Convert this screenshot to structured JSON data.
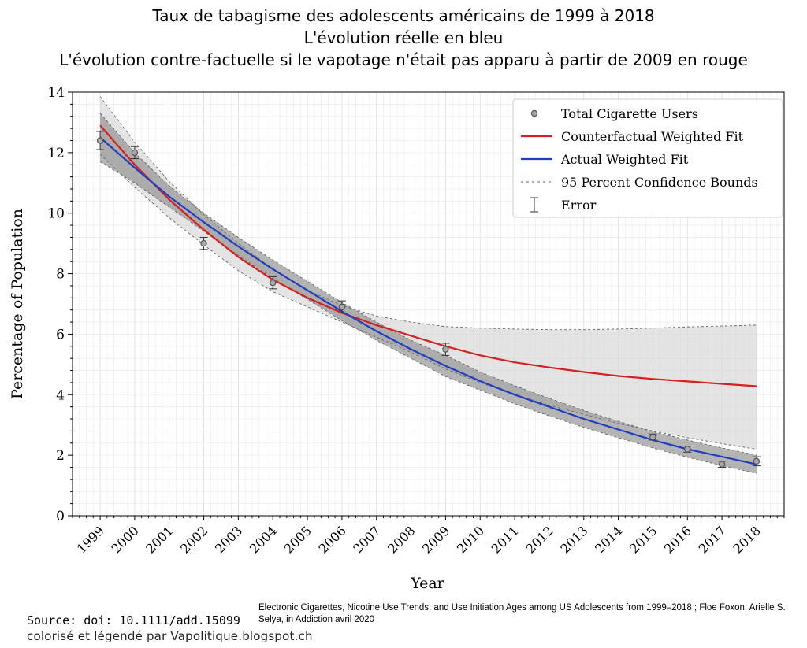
{
  "titles": {
    "line1": "Taux de tabagisme des adolescents américains de 1999 à 2018",
    "line2": "L'évolution réelle en bleu",
    "line3": "L'évolution contre-factuelle si le vapotage n'était pas apparu à partir de 2009 en rouge"
  },
  "source": {
    "main": "Source: doi: 10.1111/add.15099",
    "citation": "Electronic Cigarettes, Nicotine Use Trends, and Use Initiation Ages among US Adolescents from 1999–2018 ; Floe Foxon, Arielle S. Selya, in Addiction avril 2020",
    "credit": "colorisé et légendé par Vapolitique.blogspot.ch"
  },
  "chart_data": {
    "type": "line",
    "xlabel": "Year",
    "ylabel": "Percentage of Population",
    "xlim": [
      1998.2,
      2018.8
    ],
    "ylim": [
      0,
      14
    ],
    "x_ticks": [
      1999,
      2000,
      2001,
      2002,
      2003,
      2004,
      2005,
      2006,
      2007,
      2008,
      2009,
      2010,
      2011,
      2012,
      2013,
      2014,
      2015,
      2016,
      2017,
      2018
    ],
    "y_ticks": [
      0,
      2,
      4,
      6,
      8,
      10,
      12,
      14
    ],
    "grid": "minor",
    "legend_position": "top-right",
    "legend": [
      {
        "label": "Total Cigarette Users",
        "kind": "marker"
      },
      {
        "label": "Counterfactual Weighted Fit",
        "kind": "line",
        "color": "#d62020"
      },
      {
        "label": "Actual Weighted Fit",
        "kind": "line",
        "color": "#1f3fbf"
      },
      {
        "label": "95 Percent Confidence Bounds",
        "kind": "dashed"
      },
      {
        "label": "Error",
        "kind": "errorbar"
      }
    ],
    "points": [
      {
        "x": 1999,
        "y": 12.4,
        "err": 0.3
      },
      {
        "x": 2000,
        "y": 12.0,
        "err": 0.2
      },
      {
        "x": 2002,
        "y": 9.0,
        "err": 0.2
      },
      {
        "x": 2004,
        "y": 7.7,
        "err": 0.2
      },
      {
        "x": 2006,
        "y": 6.9,
        "err": 0.2
      },
      {
        "x": 2009,
        "y": 5.5,
        "err": 0.2
      },
      {
        "x": 2015,
        "y": 2.6,
        "err": 0.1
      },
      {
        "x": 2016,
        "y": 2.2,
        "err": 0.1
      },
      {
        "x": 2017,
        "y": 1.7,
        "err": 0.1
      },
      {
        "x": 2018,
        "y": 1.8,
        "err": 0.15
      }
    ],
    "actual_fit": {
      "name": "Actual Weighted Fit",
      "color": "#1f3fbf",
      "x": [
        1999,
        2000,
        2001,
        2002,
        2003,
        2004,
        2005,
        2006,
        2007,
        2008,
        2009,
        2010,
        2011,
        2012,
        2013,
        2014,
        2015,
        2016,
        2017,
        2018
      ],
      "y": [
        12.5,
        11.5,
        10.55,
        9.7,
        8.9,
        8.15,
        7.45,
        6.75,
        6.1,
        5.5,
        4.95,
        4.45,
        4.0,
        3.6,
        3.2,
        2.85,
        2.5,
        2.2,
        1.95,
        1.7
      ],
      "upper": [
        13.3,
        12.0,
        10.9,
        10.0,
        9.2,
        8.45,
        7.75,
        7.05,
        6.4,
        5.8,
        5.3,
        4.75,
        4.3,
        3.88,
        3.48,
        3.12,
        2.78,
        2.5,
        2.24,
        2.0
      ],
      "lower": [
        11.7,
        11.0,
        10.2,
        9.4,
        8.6,
        7.85,
        7.15,
        6.45,
        5.8,
        5.2,
        4.6,
        4.15,
        3.7,
        3.3,
        2.92,
        2.58,
        2.24,
        1.93,
        1.66,
        1.4
      ]
    },
    "counterfactual_fit": {
      "name": "Counterfactual Weighted Fit",
      "color": "#d62020",
      "x": [
        1999,
        2000,
        2001,
        2002,
        2003,
        2004,
        2005,
        2006,
        2007,
        2008,
        2009,
        2010,
        2011,
        2012,
        2013,
        2014,
        2015,
        2016,
        2017,
        2018
      ],
      "y": [
        12.9,
        11.6,
        10.45,
        9.45,
        8.55,
        7.8,
        7.2,
        6.7,
        6.3,
        5.95,
        5.6,
        5.3,
        5.07,
        4.9,
        4.75,
        4.62,
        4.52,
        4.44,
        4.36,
        4.28
      ],
      "upper": [
        13.85,
        12.35,
        11.05,
        9.95,
        9.0,
        8.15,
        7.45,
        6.95,
        6.6,
        6.4,
        6.25,
        6.2,
        6.17,
        6.15,
        6.15,
        6.17,
        6.2,
        6.24,
        6.27,
        6.3
      ],
      "lower": [
        11.95,
        10.85,
        9.85,
        8.95,
        8.1,
        7.4,
        6.9,
        6.4,
        5.9,
        5.4,
        4.85,
        4.4,
        4.0,
        3.65,
        3.35,
        3.05,
        2.8,
        2.58,
        2.38,
        2.2
      ]
    }
  }
}
